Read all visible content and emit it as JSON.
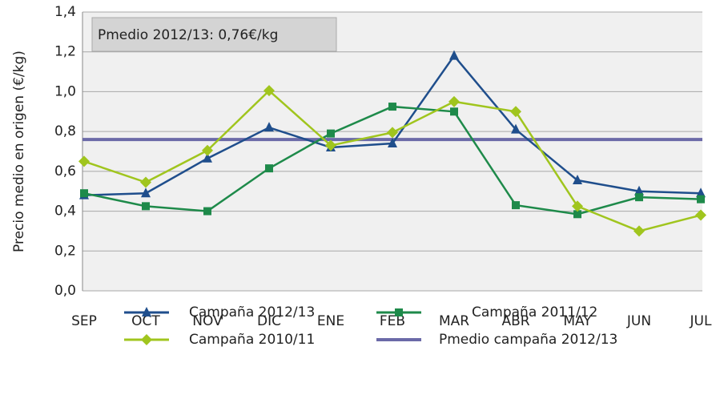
{
  "chart_data": {
    "type": "line",
    "y_label": "Precio medio en origen (€/kg)",
    "annotation": "Pmedio 2012/13: 0,76€/kg",
    "categories": [
      "SEP",
      "OCT",
      "NOV",
      "DIC",
      "ENE",
      "FEB",
      "MAR",
      "ABR",
      "MAY",
      "JUN",
      "JUL"
    ],
    "series": [
      {
        "name": "Campaña 2012/13",
        "color": "#1f4e8c",
        "marker": "triangle",
        "values": [
          0.48,
          0.49,
          0.665,
          0.82,
          0.72,
          0.74,
          1.18,
          0.81,
          0.555,
          0.5,
          0.49
        ]
      },
      {
        "name": "Campaña 2011/12",
        "color": "#1e8a4a",
        "marker": "square",
        "values": [
          0.49,
          0.425,
          0.4,
          0.615,
          0.79,
          0.925,
          0.9,
          0.43,
          0.385,
          0.47,
          0.46
        ]
      },
      {
        "name": "Campaña 2010/11",
        "color": "#a0c51e",
        "marker": "diamond",
        "values": [
          0.65,
          0.545,
          0.705,
          1.005,
          0.73,
          0.795,
          0.95,
          0.9,
          0.425,
          0.3,
          0.38
        ]
      }
    ],
    "reference": {
      "name": "Pmedio campaña 2012/13",
      "value": 0.76,
      "color": "#6b6aa8"
    },
    "ylim": [
      0,
      1.4
    ],
    "yticks": [
      {
        "value": 0,
        "label": "0,0"
      },
      {
        "value": 0.2,
        "label": "0,2"
      },
      {
        "value": 0.4,
        "label": "0,4"
      },
      {
        "value": 0.6,
        "label": "0,6"
      },
      {
        "value": 0.8,
        "label": "0,8"
      },
      {
        "value": 1,
        "label": "1,0"
      },
      {
        "value": 1.2,
        "label": "1,2"
      },
      {
        "value": 1.4,
        "label": "1,4"
      }
    ],
    "grid": true
  }
}
